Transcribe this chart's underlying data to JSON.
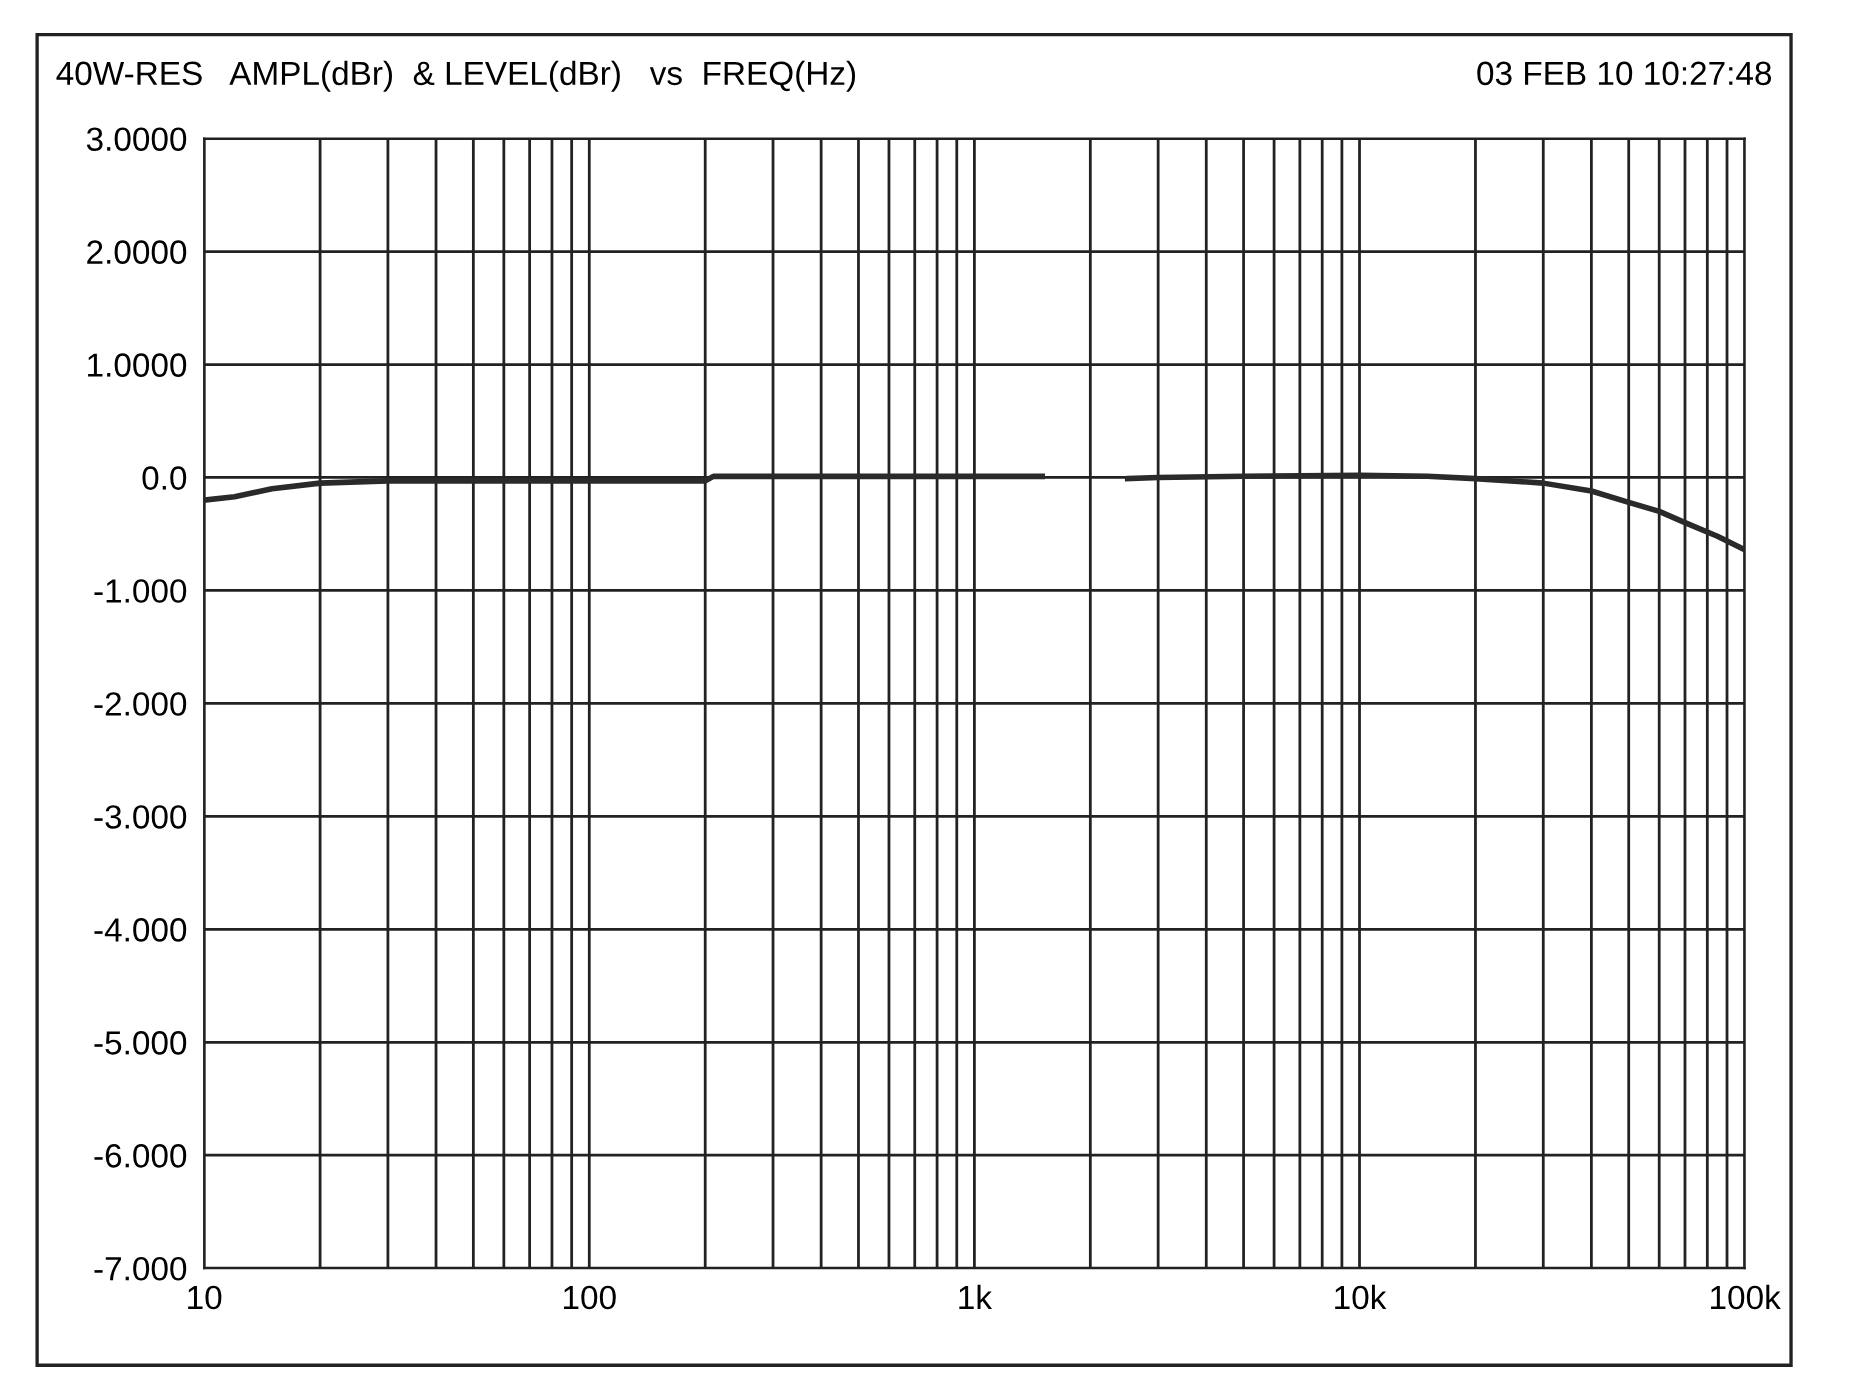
{
  "chart_data": {
    "type": "line",
    "title": "40W-RES   AMPL(dBr)  & LEVEL(dBr)   vs  FREQ(Hz)",
    "subtitle": "03 FEB 10 10:27:48",
    "log": "x",
    "grid": true,
    "marker": "none",
    "line_style": "solid",
    "xlim": [
      10,
      100000
    ],
    "ylim": [
      -7,
      3
    ],
    "xticks": [
      {
        "value": 10,
        "label": "10"
      },
      {
        "value": 100,
        "label": "100"
      },
      {
        "value": 1000,
        "label": "1k"
      },
      {
        "value": 10000,
        "label": "10k"
      },
      {
        "value": 100000,
        "label": "100k"
      }
    ],
    "yticks": [
      {
        "value": 3,
        "label": "3.0000"
      },
      {
        "value": 2,
        "label": "2.0000"
      },
      {
        "value": 1,
        "label": "1.0000"
      },
      {
        "value": 0,
        "label": "0.0"
      },
      {
        "value": -1,
        "label": "-1.000"
      },
      {
        "value": -2,
        "label": "-2.000"
      },
      {
        "value": -3,
        "label": "-3.000"
      },
      {
        "value": -4,
        "label": "-4.000"
      },
      {
        "value": -5,
        "label": "-5.000"
      },
      {
        "value": -6,
        "label": "-6.000"
      },
      {
        "value": -7,
        "label": "-7.000"
      }
    ],
    "series": [
      {
        "color": "#2a2a2a",
        "x": [
          10,
          12,
          15,
          20,
          30,
          50,
          100,
          200,
          210,
          500,
          1000,
          1500,
          1600,
          2500,
          3000,
          5000,
          10000,
          15000,
          20000,
          30000,
          40000,
          50000,
          60000,
          70000,
          85000,
          100000
        ],
        "values": [
          -0.2,
          -0.17,
          -0.1,
          -0.05,
          -0.03,
          -0.03,
          -0.03,
          -0.03,
          0.01,
          0.01,
          0.01,
          0.01,
          null,
          -0.01,
          0.0,
          0.01,
          0.02,
          0.01,
          -0.01,
          -0.05,
          -0.12,
          -0.22,
          -0.3,
          -0.4,
          -0.52,
          -0.64
        ]
      }
    ]
  }
}
